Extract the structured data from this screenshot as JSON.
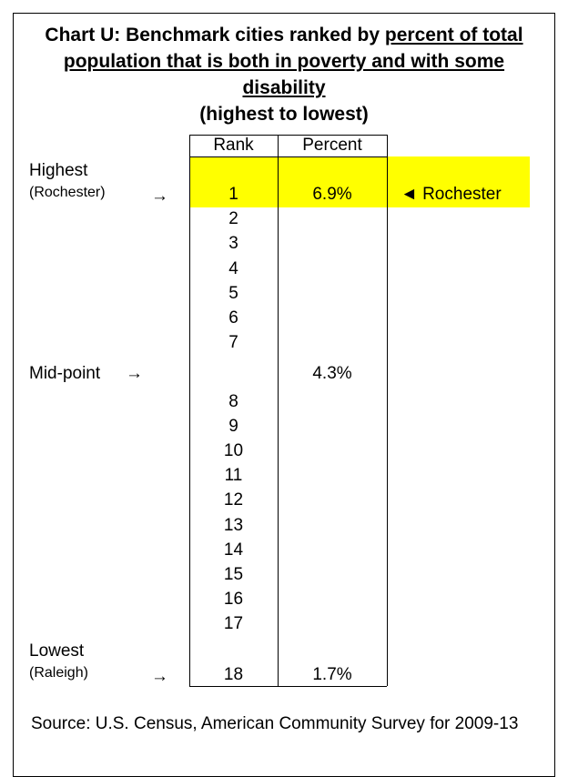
{
  "title": {
    "lead": "Chart U: Benchmark cities ranked by ",
    "underlined": "percent of total population that is both in poverty and with some disability",
    "sub": "(highest to lowest)"
  },
  "table": {
    "columns": [
      "Rank",
      "Percent"
    ],
    "rows": [
      {
        "rank": 1,
        "percent": "6.9%",
        "label": "Highest",
        "sublabel": "(Rochester)",
        "arrow": "→",
        "note": "◄ Rochester"
      },
      {
        "rank": 2
      },
      {
        "rank": 3
      },
      {
        "rank": 4
      },
      {
        "rank": 5
      },
      {
        "rank": 6
      },
      {
        "rank": 7
      },
      {
        "percent": "4.3%",
        "label": "Mid-point",
        "arrow": "→"
      },
      {
        "rank": 8
      },
      {
        "rank": 9
      },
      {
        "rank": 10
      },
      {
        "rank": 11
      },
      {
        "rank": 12
      },
      {
        "rank": 13
      },
      {
        "rank": 14
      },
      {
        "rank": 15
      },
      {
        "rank": 16
      },
      {
        "rank": 17
      },
      {
        "rank": 18,
        "percent": "1.7%",
        "label": "Lowest",
        "sublabel": "(Raleigh)",
        "arrow": "→"
      }
    ]
  },
  "source": "Source: U.S. Census, American Community Survey for 2009-13"
}
